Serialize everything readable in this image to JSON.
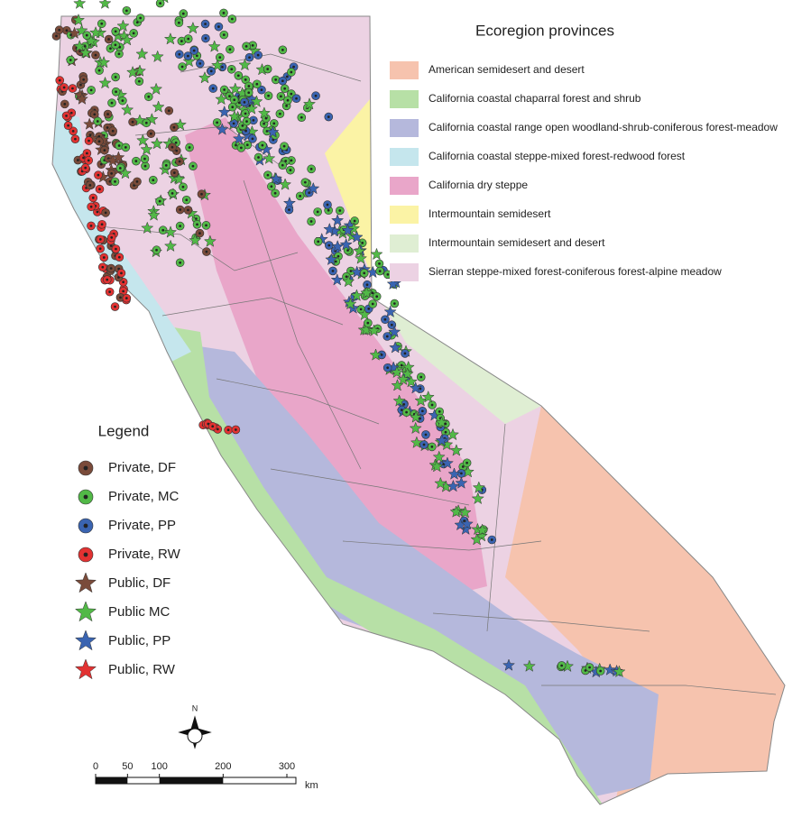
{
  "ecoregions": {
    "title": "Ecoregion provinces",
    "items": [
      {
        "label": "American semidesert and desert",
        "color": "#f6c3ae"
      },
      {
        "label": "California coastal chaparral forest and shrub",
        "color": "#b7e0a6"
      },
      {
        "label": "California coastal range open woodland-shrub-coniferous forest-meadow",
        "color": "#b5b8dc"
      },
      {
        "label": "California coastal steppe-mixed forest-redwood forest",
        "color": "#c5e6ed"
      },
      {
        "label": "California dry steppe",
        "color": "#e9a6c9"
      },
      {
        "label": "Intermountain semidesert",
        "color": "#fbf3a5"
      },
      {
        "label": "Intermountain semidesert and desert",
        "color": "#dfeed3"
      },
      {
        "label": "Sierran steppe-mixed forest-coniferous forest-alpine meadow",
        "color": "#ecd2e3"
      }
    ]
  },
  "legend": {
    "title": "Legend",
    "items": [
      {
        "label": "Private, DF",
        "color": "#7a4b3a",
        "marker": "circle"
      },
      {
        "label": "Private, MC",
        "color": "#52b947",
        "marker": "circle"
      },
      {
        "label": "Private, PP",
        "color": "#3a64b1",
        "marker": "circle"
      },
      {
        "label": "Private, RW",
        "color": "#e23232",
        "marker": "circle"
      },
      {
        "label": "Public, DF",
        "color": "#7a4b3a",
        "marker": "star"
      },
      {
        "label": "Public MC",
        "color": "#52b947",
        "marker": "star"
      },
      {
        "label": "Public, PP",
        "color": "#3a64b1",
        "marker": "star"
      },
      {
        "label": "Public, RW",
        "color": "#e23232",
        "marker": "star"
      }
    ]
  },
  "scale": {
    "ticks": [
      0,
      50,
      100,
      200,
      300
    ],
    "unit": "km"
  },
  "compass": {
    "label": "N"
  }
}
